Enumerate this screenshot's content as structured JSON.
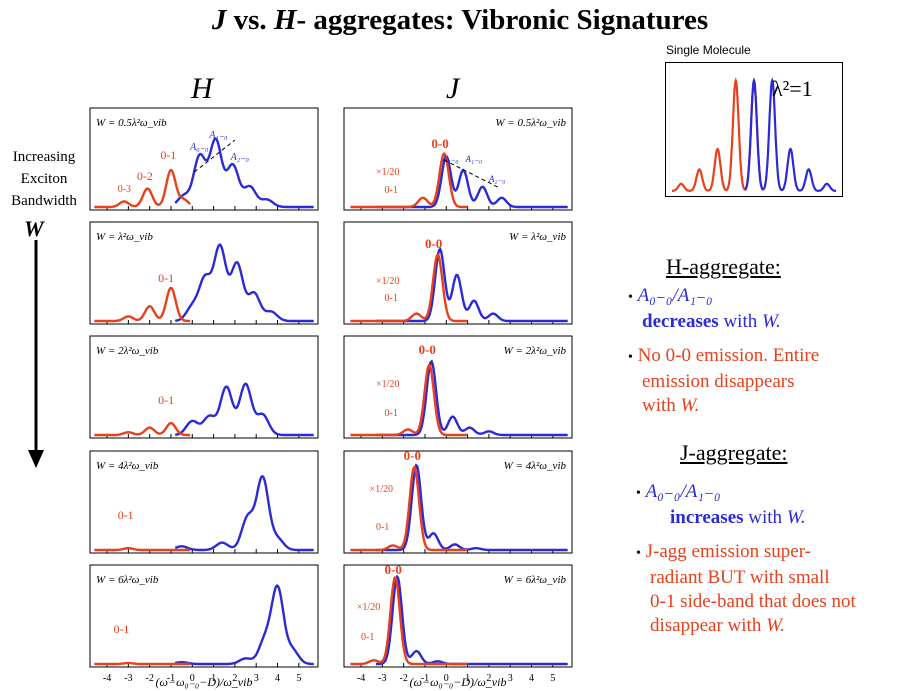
{
  "title": {
    "j": "J",
    "vs": " vs. ",
    "h": "H",
    "rest": "- aggregates: Vibronic Signatures"
  },
  "columns": {
    "h": "H",
    "j": "J"
  },
  "side": {
    "line1": "Increasing",
    "line2": "Exciton",
    "line3": "Bandwidth",
    "w": "W"
  },
  "xaxis_label": "(ω−ω₀₋₀−D)/ω_vib",
  "x_ticks": [
    "-4",
    "-3",
    "-2",
    "-1",
    "0",
    "1",
    "2",
    "3",
    "4",
    "5"
  ],
  "single_molecule": {
    "title": "Single Molecule",
    "lambda": "λ²=1"
  },
  "h_panel": {
    "header": "H-aggregate:",
    "b1_ratio": "A₀₋₀/A₁₋₀",
    "b1_rest_bold": "decreases",
    "b1_rest": " with ",
    "b1_w": "W.",
    "b2_l1": "No 0-0 emission.  Entire",
    "b2_l2": "emission  disappears",
    "b2_l3": "with ",
    "b2_w": "W."
  },
  "j_panel": {
    "header": "J-aggregate:",
    "b1_ratio": "A₀₋₀/A₁₋₀",
    "b1_rest_bold": "increases",
    "b1_rest": " with ",
    "b1_w": "W.",
    "b2_l1": "J-agg emission super-",
    "b2_l2": "radiant BUT with small",
    "b2_l3": "0-1 side-band that does not",
    "b2_l4": "disappear with ",
    "b2_w": "W."
  },
  "colors": {
    "absorption": "#2a2ad6",
    "emission": "#e8401c"
  },
  "h_rows": [
    {
      "w": "W = 0.5λ²ω_vib",
      "labels": [
        "0-3",
        "0-2",
        "0-1",
        "A₀₋₀",
        "A₁₋₀",
        "A₂₋₀"
      ]
    },
    {
      "w": "W = λ²ω_vib",
      "labels": [
        "0-1"
      ]
    },
    {
      "w": "W = 2λ²ω_vib",
      "labels": [
        "0-1"
      ]
    },
    {
      "w": "W = 4λ²ω_vib",
      "labels": [
        "0-1"
      ]
    },
    {
      "w": "W = 6λ²ω_vib",
      "labels": [
        "0-1"
      ]
    }
  ],
  "j_rows": [
    {
      "w": "W = 0.5λ²ω_vib",
      "labels": [
        "0-0",
        "×1/20",
        "0-1",
        "A₀₋₀",
        "A₁₋₀",
        "A₂₋₀"
      ]
    },
    {
      "w": "W = λ²ω_vib",
      "labels": [
        "0-0",
        "×1/20",
        "0-1"
      ]
    },
    {
      "w": "W = 2λ²ω_vib",
      "labels": [
        "0-0",
        "×1/20",
        "0-1"
      ]
    },
    {
      "w": "W = 4λ²ω_vib",
      "labels": [
        "0-0",
        "×1/20",
        "0-1"
      ]
    },
    {
      "w": "W = 6λ²ω_vib",
      "labels": [
        "0-0",
        "×1/20",
        "0-1"
      ]
    }
  ]
}
